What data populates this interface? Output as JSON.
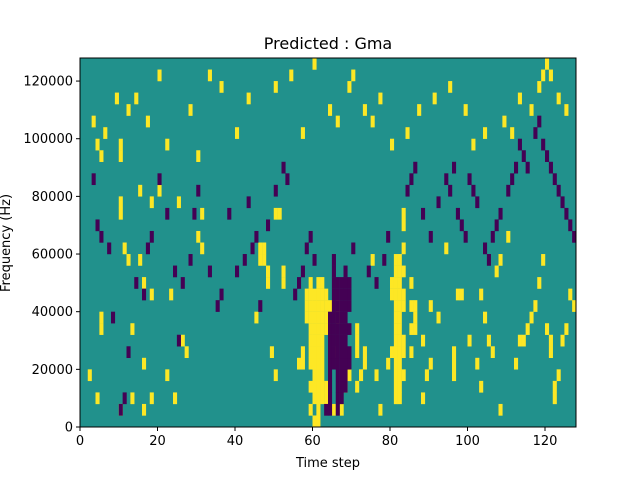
{
  "chart_data": {
    "type": "heatmap",
    "title": "Predicted : Gma",
    "xlabel": "Time step",
    "ylabel": "Frequency (Hz)",
    "xlim": [
      0,
      128
    ],
    "ylim": [
      0,
      128000
    ],
    "x_ticks": [
      0,
      20,
      40,
      60,
      80,
      100,
      120
    ],
    "y_ticks": [
      0,
      20000,
      40000,
      60000,
      80000,
      100000,
      120000
    ],
    "x_tick_labels": [
      "0",
      "20",
      "40",
      "60",
      "80",
      "100",
      "120"
    ],
    "y_tick_labels": [
      "0",
      "20000",
      "40000",
      "60000",
      "80000",
      "100000",
      "120000"
    ],
    "grid": false,
    "colorscale": "viridis",
    "background_value": 0,
    "colors": {
      "low": "#440154",
      "mid": "#21918c",
      "high": "#fde725"
    },
    "cell_size": {
      "x": 1,
      "y": 4000
    },
    "high_cells": [
      [
        2,
        4
      ],
      [
        3,
        26
      ],
      [
        4,
        2
      ],
      [
        4,
        24
      ],
      [
        5,
        23
      ],
      [
        5,
        8
      ],
      [
        5,
        9
      ],
      [
        10,
        1
      ],
      [
        10,
        18
      ],
      [
        10,
        19
      ],
      [
        10,
        23
      ],
      [
        10,
        24
      ],
      [
        11,
        15
      ],
      [
        12,
        14
      ],
      [
        13,
        2
      ],
      [
        13,
        8
      ],
      [
        15,
        14
      ],
      [
        15,
        20
      ],
      [
        16,
        1
      ],
      [
        16,
        5
      ],
      [
        16,
        12
      ],
      [
        18,
        2
      ],
      [
        18,
        11
      ],
      [
        18,
        19
      ],
      [
        20,
        20
      ],
      [
        22,
        4
      ],
      [
        22,
        24
      ],
      [
        23,
        11
      ],
      [
        24,
        2
      ],
      [
        25,
        19
      ],
      [
        26,
        7
      ],
      [
        27,
        6
      ],
      [
        30,
        23
      ],
      [
        30,
        16
      ],
      [
        31,
        15
      ],
      [
        31,
        18
      ],
      [
        45,
        9
      ],
      [
        46,
        14
      ],
      [
        46,
        15
      ],
      [
        47,
        14
      ],
      [
        47,
        15
      ],
      [
        48,
        12
      ],
      [
        48,
        13
      ],
      [
        49,
        6
      ],
      [
        50,
        4
      ],
      [
        50,
        18
      ],
      [
        51,
        18
      ],
      [
        52,
        12
      ],
      [
        52,
        13
      ],
      [
        56,
        5
      ],
      [
        57,
        5
      ],
      [
        57,
        6
      ],
      [
        58,
        9
      ],
      [
        58,
        10
      ],
      [
        58,
        11
      ],
      [
        59,
        1
      ],
      [
        59,
        3
      ],
      [
        59,
        5
      ],
      [
        59,
        6
      ],
      [
        59,
        7
      ],
      [
        59,
        8
      ],
      [
        59,
        9
      ],
      [
        59,
        10
      ],
      [
        59,
        11
      ],
      [
        59,
        12
      ],
      [
        60,
        0
      ],
      [
        60,
        2
      ],
      [
        60,
        3
      ],
      [
        60,
        4
      ],
      [
        60,
        5
      ],
      [
        60,
        6
      ],
      [
        60,
        7
      ],
      [
        60,
        8
      ],
      [
        60,
        9
      ],
      [
        60,
        10
      ],
      [
        60,
        11
      ],
      [
        61,
        0
      ],
      [
        61,
        1
      ],
      [
        61,
        2
      ],
      [
        61,
        3
      ],
      [
        61,
        4
      ],
      [
        61,
        5
      ],
      [
        61,
        6
      ],
      [
        61,
        7
      ],
      [
        61,
        8
      ],
      [
        61,
        9
      ],
      [
        61,
        10
      ],
      [
        61,
        11
      ],
      [
        61,
        12
      ],
      [
        62,
        2
      ],
      [
        62,
        3
      ],
      [
        62,
        4
      ],
      [
        62,
        5
      ],
      [
        62,
        6
      ],
      [
        62,
        7
      ],
      [
        62,
        8
      ],
      [
        62,
        9
      ],
      [
        62,
        10
      ],
      [
        62,
        11
      ],
      [
        62,
        12
      ],
      [
        63,
        2
      ],
      [
        63,
        3
      ],
      [
        63,
        8
      ],
      [
        63,
        9
      ],
      [
        63,
        10
      ],
      [
        63,
        11
      ],
      [
        64,
        10
      ],
      [
        65,
        1
      ],
      [
        65,
        6
      ],
      [
        66,
        9
      ],
      [
        66,
        10
      ],
      [
        67,
        1
      ],
      [
        68,
        3
      ],
      [
        69,
        4
      ],
      [
        71,
        3
      ],
      [
        71,
        6
      ],
      [
        71,
        7
      ],
      [
        71,
        8
      ],
      [
        72,
        4
      ],
      [
        73,
        5
      ],
      [
        73,
        6
      ],
      [
        75,
        14
      ],
      [
        76,
        4
      ],
      [
        77,
        1
      ],
      [
        79,
        5
      ],
      [
        80,
        6
      ],
      [
        80,
        11
      ],
      [
        80,
        12
      ],
      [
        81,
        2
      ],
      [
        81,
        3
      ],
      [
        81,
        4
      ],
      [
        81,
        5
      ],
      [
        81,
        6
      ],
      [
        81,
        7
      ],
      [
        81,
        8
      ],
      [
        81,
        9
      ],
      [
        81,
        10
      ],
      [
        81,
        11
      ],
      [
        81,
        12
      ],
      [
        81,
        13
      ],
      [
        81,
        14
      ],
      [
        82,
        2
      ],
      [
        82,
        3
      ],
      [
        82,
        4
      ],
      [
        82,
        5
      ],
      [
        82,
        6
      ],
      [
        82,
        7
      ],
      [
        82,
        8
      ],
      [
        82,
        9
      ],
      [
        82,
        10
      ],
      [
        82,
        11
      ],
      [
        82,
        12
      ],
      [
        82,
        13
      ],
      [
        82,
        14
      ],
      [
        83,
        4
      ],
      [
        83,
        6
      ],
      [
        83,
        7
      ],
      [
        83,
        10
      ],
      [
        83,
        11
      ],
      [
        83,
        13
      ],
      [
        83,
        15
      ],
      [
        83,
        17
      ],
      [
        83,
        18
      ],
      [
        85,
        6
      ],
      [
        85,
        8
      ],
      [
        85,
        10
      ],
      [
        85,
        12
      ],
      [
        86,
        8
      ],
      [
        86,
        9
      ],
      [
        86,
        10
      ],
      [
        88,
        2
      ],
      [
        88,
        7
      ],
      [
        89,
        4
      ],
      [
        90,
        5
      ],
      [
        90,
        10
      ],
      [
        92,
        9
      ],
      [
        94,
        15
      ],
      [
        96,
        4
      ],
      [
        96,
        5
      ],
      [
        96,
        6
      ],
      [
        97,
        11
      ],
      [
        98,
        11
      ],
      [
        100,
        7
      ],
      [
        102,
        5
      ],
      [
        103,
        3
      ],
      [
        103,
        11
      ],
      [
        104,
        9
      ],
      [
        105,
        7
      ],
      [
        106,
        6
      ],
      [
        107,
        13
      ],
      [
        108,
        1
      ],
      [
        108,
        14
      ],
      [
        110,
        16
      ],
      [
        112,
        5
      ],
      [
        113,
        7
      ],
      [
        114,
        7
      ],
      [
        115,
        8
      ],
      [
        116,
        9
      ],
      [
        117,
        10
      ],
      [
        118,
        12
      ],
      [
        119,
        14
      ],
      [
        120,
        8
      ],
      [
        121,
        6
      ],
      [
        121,
        7
      ],
      [
        122,
        2
      ],
      [
        122,
        3
      ],
      [
        123,
        4
      ],
      [
        124,
        7
      ],
      [
        125,
        8
      ],
      [
        126,
        11
      ],
      [
        127,
        10
      ],
      [
        6,
        25
      ],
      [
        9,
        28
      ],
      [
        12,
        27
      ],
      [
        14,
        28
      ],
      [
        17,
        26
      ],
      [
        20,
        30
      ],
      [
        28,
        27
      ],
      [
        33,
        30
      ],
      [
        36,
        29
      ],
      [
        40,
        25
      ],
      [
        43,
        28
      ],
      [
        50,
        29
      ],
      [
        54,
        30
      ],
      [
        57,
        25
      ],
      [
        60,
        31
      ],
      [
        64,
        27
      ],
      [
        66,
        26
      ],
      [
        69,
        29
      ],
      [
        70,
        30
      ],
      [
        73,
        27
      ],
      [
        75,
        26
      ],
      [
        77,
        28
      ],
      [
        80,
        24
      ],
      [
        84,
        25
      ],
      [
        87,
        27
      ],
      [
        91,
        28
      ],
      [
        95,
        29
      ],
      [
        99,
        27
      ],
      [
        101,
        24
      ],
      [
        104,
        25
      ],
      [
        109,
        26
      ],
      [
        111,
        25
      ],
      [
        113,
        28
      ],
      [
        116,
        27
      ],
      [
        118,
        29
      ],
      [
        119,
        30
      ],
      [
        120,
        31
      ],
      [
        121,
        30
      ],
      [
        123,
        28
      ],
      [
        125,
        27
      ]
    ],
    "low_cells": [
      [
        3,
        21
      ],
      [
        4,
        17
      ],
      [
        5,
        16
      ],
      [
        7,
        15
      ],
      [
        8,
        9
      ],
      [
        10,
        1
      ],
      [
        11,
        2
      ],
      [
        12,
        6
      ],
      [
        14,
        12
      ],
      [
        16,
        11
      ],
      [
        17,
        15
      ],
      [
        18,
        16
      ],
      [
        20,
        21
      ],
      [
        22,
        18
      ],
      [
        24,
        13
      ],
      [
        25,
        7
      ],
      [
        26,
        12
      ],
      [
        28,
        14
      ],
      [
        29,
        18
      ],
      [
        30,
        20
      ],
      [
        33,
        13
      ],
      [
        35,
        10
      ],
      [
        36,
        11
      ],
      [
        38,
        18
      ],
      [
        40,
        13
      ],
      [
        42,
        14
      ],
      [
        43,
        19
      ],
      [
        44,
        15
      ],
      [
        45,
        16
      ],
      [
        46,
        10
      ],
      [
        48,
        17
      ],
      [
        50,
        20
      ],
      [
        52,
        22
      ],
      [
        53,
        21
      ],
      [
        55,
        11
      ],
      [
        56,
        12
      ],
      [
        57,
        13
      ],
      [
        58,
        15
      ],
      [
        59,
        16
      ],
      [
        60,
        14
      ],
      [
        63,
        1
      ],
      [
        64,
        1
      ],
      [
        64,
        2
      ],
      [
        64,
        3
      ],
      [
        64,
        4
      ],
      [
        64,
        5
      ],
      [
        64,
        6
      ],
      [
        64,
        7
      ],
      [
        64,
        8
      ],
      [
        64,
        9
      ],
      [
        65,
        5
      ],
      [
        65,
        6
      ],
      [
        65,
        7
      ],
      [
        65,
        8
      ],
      [
        65,
        9
      ],
      [
        65,
        10
      ],
      [
        65,
        11
      ],
      [
        65,
        12
      ],
      [
        65,
        13
      ],
      [
        65,
        14
      ],
      [
        66,
        1
      ],
      [
        66,
        2
      ],
      [
        66,
        3
      ],
      [
        66,
        4
      ],
      [
        66,
        5
      ],
      [
        66,
        6
      ],
      [
        66,
        7
      ],
      [
        66,
        8
      ],
      [
        66,
        9
      ],
      [
        66,
        10
      ],
      [
        66,
        11
      ],
      [
        66,
        12
      ],
      [
        67,
        2
      ],
      [
        67,
        3
      ],
      [
        67,
        4
      ],
      [
        67,
        5
      ],
      [
        67,
        6
      ],
      [
        67,
        7
      ],
      [
        67,
        8
      ],
      [
        67,
        9
      ],
      [
        67,
        10
      ],
      [
        67,
        11
      ],
      [
        67,
        12
      ],
      [
        68,
        3
      ],
      [
        68,
        4
      ],
      [
        68,
        5
      ],
      [
        68,
        6
      ],
      [
        68,
        7
      ],
      [
        68,
        8
      ],
      [
        68,
        9
      ],
      [
        68,
        10
      ],
      [
        68,
        11
      ],
      [
        68,
        12
      ],
      [
        68,
        13
      ],
      [
        69,
        5
      ],
      [
        69,
        6
      ],
      [
        69,
        8
      ],
      [
        69,
        10
      ],
      [
        69,
        11
      ],
      [
        69,
        12
      ],
      [
        70,
        15
      ],
      [
        74,
        13
      ],
      [
        76,
        12
      ],
      [
        78,
        14
      ],
      [
        79,
        16
      ],
      [
        84,
        20
      ],
      [
        85,
        21
      ],
      [
        86,
        22
      ],
      [
        88,
        18
      ],
      [
        90,
        16
      ],
      [
        92,
        19
      ],
      [
        94,
        21
      ],
      [
        95,
        20
      ],
      [
        96,
        22
      ],
      [
        97,
        18
      ],
      [
        98,
        17
      ],
      [
        99,
        16
      ],
      [
        100,
        21
      ],
      [
        101,
        20
      ],
      [
        102,
        19
      ],
      [
        104,
        15
      ],
      [
        105,
        14
      ],
      [
        106,
        16
      ],
      [
        107,
        17
      ],
      [
        108,
        18
      ],
      [
        110,
        20
      ],
      [
        111,
        21
      ],
      [
        112,
        22
      ],
      [
        113,
        24
      ],
      [
        114,
        23
      ],
      [
        115,
        22
      ],
      [
        117,
        25
      ],
      [
        118,
        26
      ],
      [
        119,
        24
      ],
      [
        120,
        23
      ],
      [
        121,
        22
      ],
      [
        122,
        21
      ],
      [
        123,
        20
      ],
      [
        124,
        19
      ],
      [
        125,
        18
      ],
      [
        126,
        17
      ],
      [
        127,
        16
      ]
    ]
  }
}
